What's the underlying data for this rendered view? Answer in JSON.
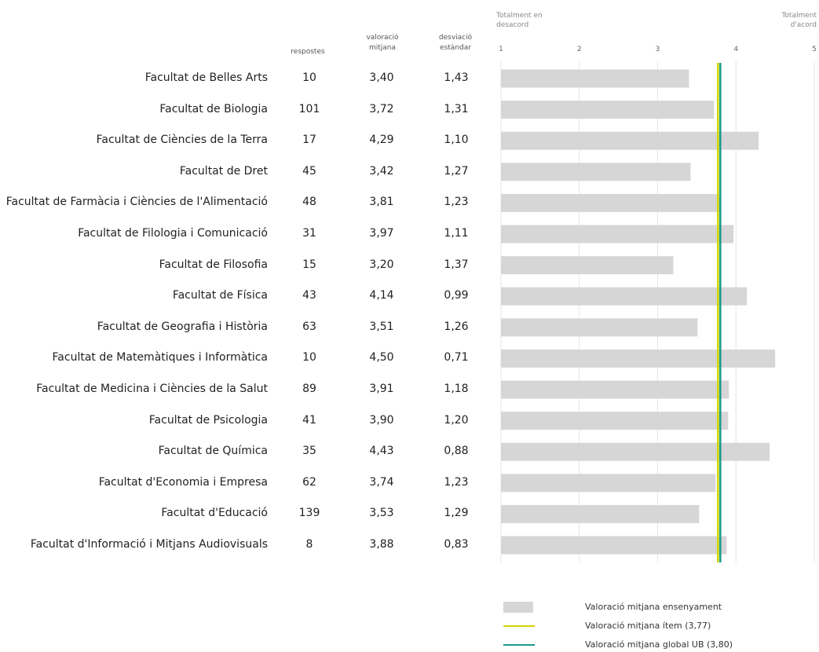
{
  "headers": {
    "responses": "respostes",
    "mean": "valoració mitjana",
    "stdev": "desviació estàndar"
  },
  "scale": {
    "left_label": "Totalment en desacord",
    "right_label": "Totalment d'acord"
  },
  "chart_data": {
    "type": "bar",
    "orientation": "horizontal",
    "xlim": [
      1,
      5
    ],
    "ticks": [
      "1",
      "2",
      "3",
      "4",
      "5"
    ],
    "grid": true,
    "categories": [
      "Facultat de Belles Arts",
      "Facultat de Biologia",
      "Facultat de Ciències de la Terra",
      "Facultat de Dret",
      "Facultat de Farmàcia i Ciències de l'Alimentació",
      "Facultat de Filologia i Comunicació",
      "Facultat de Filosofia",
      "Facultat de Física",
      "Facultat de Geografia i Història",
      "Facultat de Matemàtiques i Informàtica",
      "Facultat de Medicina i Ciències de la Salut",
      "Facultat de Psicologia",
      "Facultat de Química",
      "Facultat d'Economia i Empresa",
      "Facultat d'Educació",
      "Facultat d'Informació i Mitjans Audiovisuals"
    ],
    "responses": [
      "10",
      "101",
      "17",
      "45",
      "48",
      "31",
      "15",
      "43",
      "63",
      "10",
      "89",
      "41",
      "35",
      "62",
      "139",
      "8"
    ],
    "mean_labels": [
      "3,40",
      "3,72",
      "4,29",
      "3,42",
      "3,81",
      "3,97",
      "3,20",
      "4,14",
      "3,51",
      "4,50",
      "3,91",
      "3,90",
      "4,43",
      "3,74",
      "3,53",
      "3,88"
    ],
    "stdev_labels": [
      "1,43",
      "1,31",
      "1,10",
      "1,27",
      "1,23",
      "1,11",
      "1,37",
      "0,99",
      "1,26",
      "0,71",
      "1,18",
      "1,20",
      "0,88",
      "1,23",
      "1,29",
      "0,83"
    ],
    "values": [
      3.4,
      3.72,
      4.29,
      3.42,
      3.81,
      3.97,
      3.2,
      4.14,
      3.51,
      4.5,
      3.91,
      3.9,
      4.43,
      3.74,
      3.53,
      3.88
    ],
    "reference_lines": [
      {
        "value": 3.77,
        "color": "#d4d400"
      },
      {
        "value": 3.8,
        "color": "#1a9a8a"
      }
    ],
    "bar_color": "#d6d6d6"
  },
  "legend": [
    {
      "label": "Valoració mitjana ensenyament",
      "kind": "bar",
      "color": "#d6d6d6"
    },
    {
      "label": "Valoració mitjana ítem (3,77)",
      "kind": "line",
      "color": "#d4d400"
    },
    {
      "label": "Valoració mitjana global UB (3,80)",
      "kind": "line",
      "color": "#1a9a8a"
    }
  ]
}
